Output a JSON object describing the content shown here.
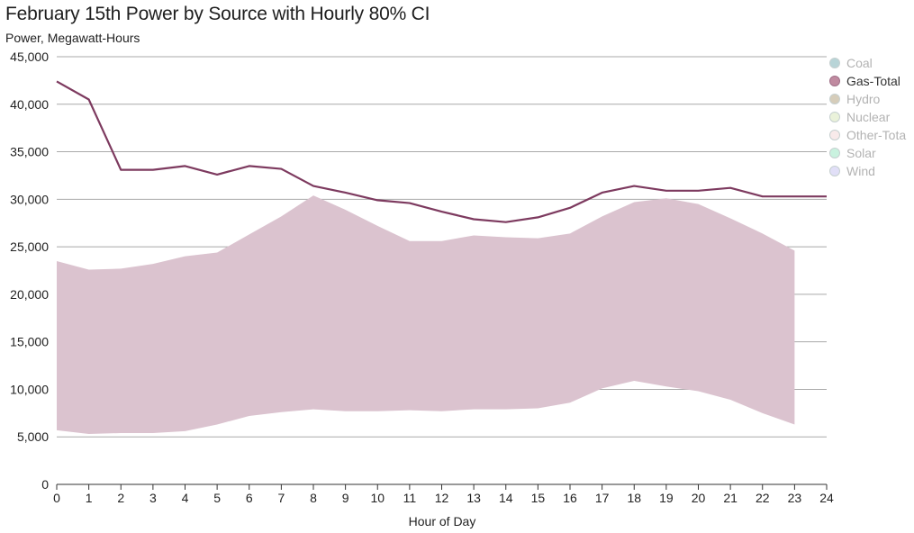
{
  "title": "February 15th Power by Source with Hourly 80% CI",
  "subtitle": "Power, Megawatt-Hours",
  "chart_data": {
    "type": "line",
    "title": "February 15th Power by Source with Hourly 80% CI",
    "ylabel": "Power, Megawatt-Hours",
    "xlabel": "Hour of Day",
    "xlim": [
      0,
      24
    ],
    "ylim": [
      0,
      45000
    ],
    "x_ticks": [
      "0",
      "1",
      "2",
      "3",
      "4",
      "5",
      "6",
      "7",
      "8",
      "9",
      "10",
      "11",
      "12",
      "13",
      "14",
      "15",
      "16",
      "17",
      "18",
      "19",
      "20",
      "21",
      "22",
      "23",
      "24"
    ],
    "y_ticks": [
      "0",
      "5,000",
      "10,000",
      "15,000",
      "20,000",
      "25,000",
      "30,000",
      "35,000",
      "40,000",
      "45,000"
    ],
    "y_tick_values": [
      0,
      5000,
      10000,
      15000,
      20000,
      25000,
      30000,
      35000,
      40000,
      45000
    ],
    "grid": "horizontal",
    "legend_position": "right",
    "legend": [
      {
        "name": "Coal",
        "color": "#7fb2b8",
        "active": false
      },
      {
        "name": "Gas-Total",
        "color": "#c08aa0",
        "active": true
      },
      {
        "name": "Hydro",
        "color": "#b5a583",
        "active": false
      },
      {
        "name": "Nuclear",
        "color": "#d9e8bd",
        "active": false
      },
      {
        "name": "Other-Tota",
        "color": "#f3d9d9",
        "active": false
      },
      {
        "name": "Solar",
        "color": "#9de8c6",
        "active": false
      },
      {
        "name": "Wind",
        "color": "#c9c6f2",
        "active": false
      }
    ],
    "series": [
      {
        "name": "Gas-Total",
        "color": "#7d3a5f",
        "band_color": "#dbc3cf",
        "x": [
          0,
          1,
          2,
          3,
          4,
          5,
          6,
          7,
          8,
          9,
          10,
          11,
          12,
          13,
          14,
          15,
          16,
          17,
          18,
          19,
          20,
          21,
          22,
          23,
          24
        ],
        "values": [
          42400,
          40500,
          33100,
          33100,
          33500,
          32600,
          33500,
          33200,
          31400,
          30700,
          29900,
          29600,
          28700,
          27900,
          27600,
          28100,
          29100,
          30700,
          31400,
          30900,
          30900,
          31200,
          30300,
          30300,
          30300
        ],
        "ci_x": [
          0,
          1,
          2,
          3,
          4,
          5,
          6,
          7,
          8,
          9,
          10,
          11,
          12,
          13,
          14,
          15,
          16,
          17,
          18,
          19,
          20,
          21,
          22,
          23
        ],
        "ci_low": [
          5700,
          5300,
          5400,
          5400,
          5600,
          6300,
          7200,
          7600,
          7900,
          7700,
          7700,
          7800,
          7700,
          7900,
          7900,
          8000,
          8600,
          10100,
          10900,
          10300,
          9800,
          8900,
          7500,
          6300
        ],
        "ci_high": [
          23500,
          22600,
          22700,
          23200,
          24000,
          24400,
          26300,
          28200,
          30400,
          28900,
          27200,
          25600,
          25600,
          26200,
          26000,
          25900,
          26400,
          28200,
          29700,
          30100,
          29500,
          28000,
          26400,
          24600
        ]
      }
    ]
  }
}
